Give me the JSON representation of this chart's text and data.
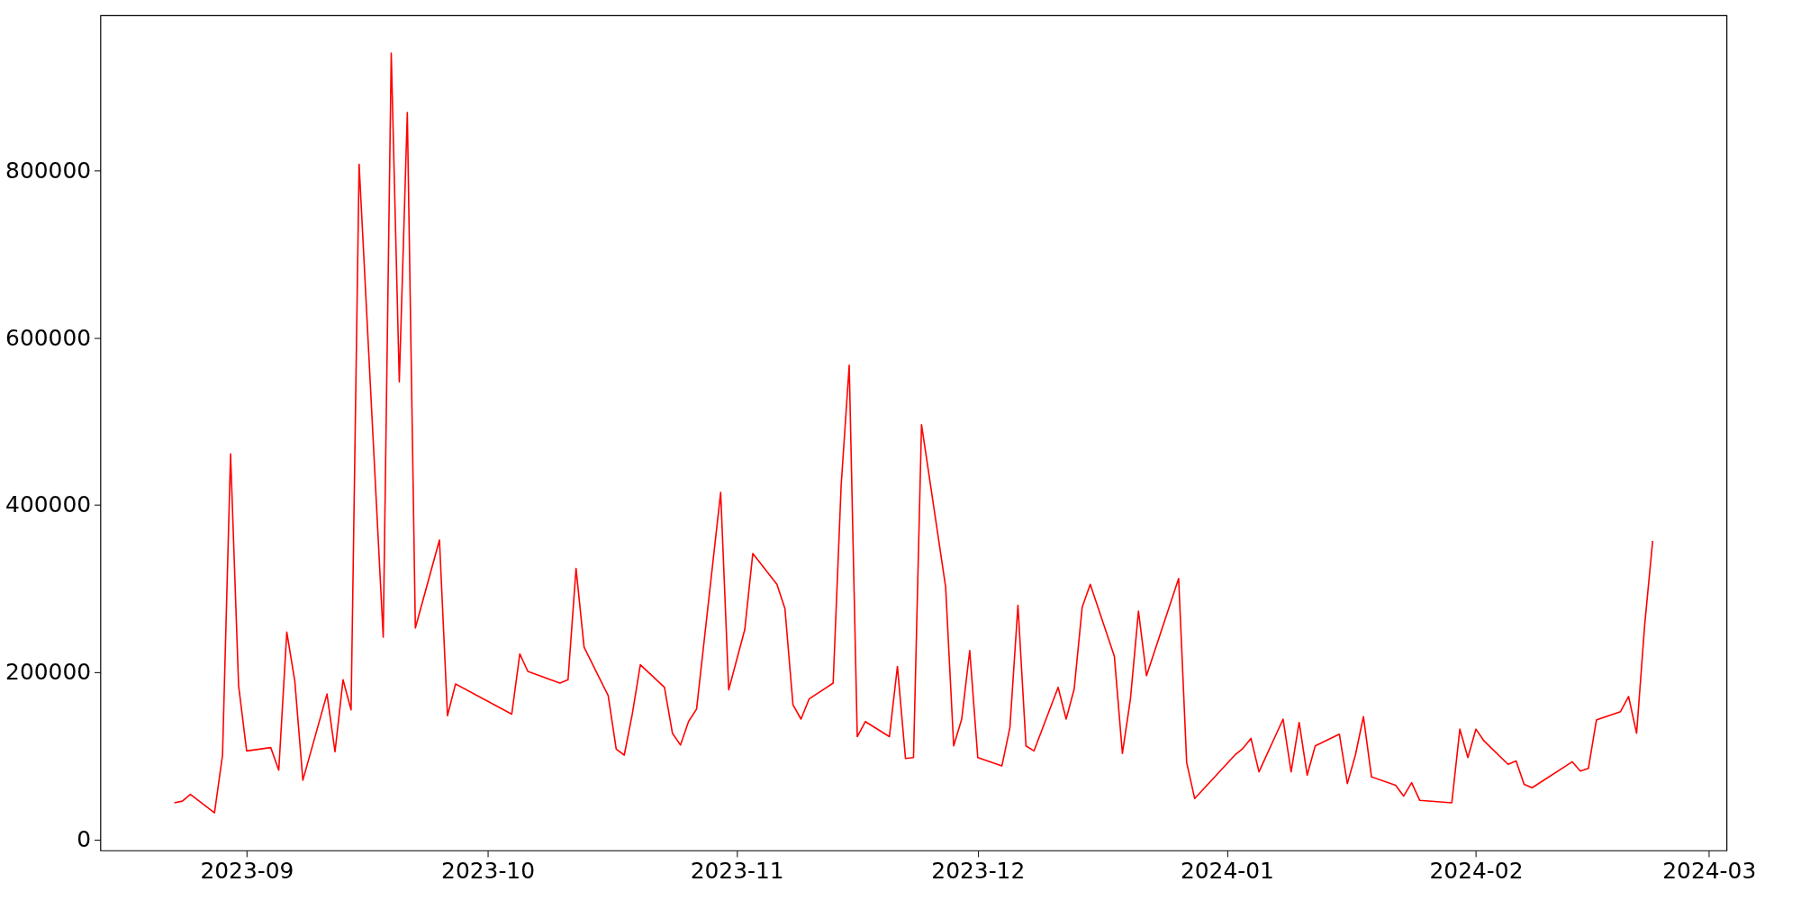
{
  "chart_data": {
    "type": "line",
    "x": [
      "2023-08-23",
      "2023-08-24",
      "2023-08-25",
      "2023-08-28",
      "2023-08-29",
      "2023-08-30",
      "2023-08-31",
      "2023-09-01",
      "2023-09-04",
      "2023-09-05",
      "2023-09-06",
      "2023-09-07",
      "2023-09-08",
      "2023-09-11",
      "2023-09-12",
      "2023-09-13",
      "2023-09-14",
      "2023-09-15",
      "2023-09-18",
      "2023-09-19",
      "2023-09-20",
      "2023-09-21",
      "2023-09-22",
      "2023-09-25",
      "2023-09-26",
      "2023-09-27",
      "2023-10-04",
      "2023-10-05",
      "2023-10-06",
      "2023-10-10",
      "2023-10-11",
      "2023-10-12",
      "2023-10-13",
      "2023-10-16",
      "2023-10-17",
      "2023-10-18",
      "2023-10-19",
      "2023-10-20",
      "2023-10-23",
      "2023-10-24",
      "2023-10-25",
      "2023-10-26",
      "2023-10-27",
      "2023-10-30",
      "2023-10-31",
      "2023-11-02",
      "2023-11-03",
      "2023-11-06",
      "2023-11-07",
      "2023-11-08",
      "2023-11-09",
      "2023-11-10",
      "2023-11-13",
      "2023-11-14",
      "2023-11-15",
      "2023-11-16",
      "2023-11-17",
      "2023-11-20",
      "2023-11-21",
      "2023-11-22",
      "2023-11-23",
      "2023-11-24",
      "2023-11-27",
      "2023-11-28",
      "2023-11-29",
      "2023-11-30",
      "2023-12-01",
      "2023-12-04",
      "2023-12-05",
      "2023-12-06",
      "2023-12-07",
      "2023-12-08",
      "2023-12-11",
      "2023-12-12",
      "2023-12-13",
      "2023-12-14",
      "2023-12-15",
      "2023-12-18",
      "2023-12-19",
      "2023-12-20",
      "2023-12-21",
      "2023-12-22",
      "2023-12-26",
      "2023-12-27",
      "2023-12-28",
      "2024-01-02",
      "2024-01-03",
      "2024-01-04",
      "2024-01-05",
      "2024-01-08",
      "2024-01-09",
      "2024-01-10",
      "2024-01-11",
      "2024-01-12",
      "2024-01-15",
      "2024-01-16",
      "2024-01-17",
      "2024-01-18",
      "2024-01-19",
      "2024-01-22",
      "2024-01-23",
      "2024-01-24",
      "2024-01-25",
      "2024-01-29",
      "2024-01-30",
      "2024-01-31",
      "2024-02-01",
      "2024-02-02",
      "2024-02-05",
      "2024-02-06",
      "2024-02-07",
      "2024-02-08",
      "2024-02-13",
      "2024-02-14",
      "2024-02-15",
      "2024-02-16",
      "2024-02-19",
      "2024-02-20",
      "2024-02-21",
      "2024-02-22",
      "2024-02-23"
    ],
    "series": [
      {
        "color": "#ff0000",
        "values": [
          44000,
          46000,
          54000,
          32000,
          101000,
          461000,
          184000,
          106000,
          110000,
          83000,
          248000,
          189000,
          71000,
          174000,
          105000,
          191000,
          155000,
          807000,
          242000,
          940000,
          547000,
          869000,
          253000,
          358000,
          148000,
          186000,
          150000,
          222000,
          201000,
          187000,
          191000,
          324000,
          230000,
          172000,
          108000,
          101000,
          150000,
          209000,
          182000,
          127000,
          113000,
          141000,
          156000,
          415000,
          179000,
          251000,
          342000,
          305000,
          276000,
          161000,
          144000,
          168000,
          187000,
          424000,
          567000,
          123000,
          141000,
          123000,
          207000,
          97000,
          98000,
          496000,
          302000,
          112000,
          144000,
          226000,
          98000,
          88000,
          134000,
          280000,
          112000,
          106000,
          182000,
          144000,
          180000,
          278000,
          305000,
          219000,
          103000,
          168000,
          273000,
          196000,
          312000,
          92000,
          49000,
          101000,
          109000,
          121000,
          81000,
          144000,
          81000,
          140000,
          77000,
          112000,
          126000,
          67000,
          101000,
          147000,
          75000,
          65000,
          52000,
          68000,
          47000,
          44000,
          132000,
          98000,
          132000,
          118000,
          90000,
          94000,
          66000,
          62000,
          93000,
          82000,
          85000,
          143000,
          153000,
          171000,
          127000,
          256000,
          357000
        ]
      }
    ],
    "xlim": [
      "2023-08-13T19:12",
      "2024-03-03T04:48"
    ],
    "xticks": [
      {
        "value": "2023-09-01",
        "label": "2023-09"
      },
      {
        "value": "2023-10-01",
        "label": "2023-10"
      },
      {
        "value": "2023-11-01",
        "label": "2023-11"
      },
      {
        "value": "2023-12-01",
        "label": "2023-12"
      },
      {
        "value": "2024-01-01",
        "label": "2024-01"
      },
      {
        "value": "2024-02-01",
        "label": "2024-02"
      },
      {
        "value": "2024-03-01",
        "label": "2024-03"
      }
    ],
    "ylim": [
      -13000,
      985000
    ],
    "yticks": [
      0,
      200000,
      400000,
      600000,
      800000
    ],
    "grid": false,
    "legend": false,
    "line_style": "solid",
    "marker": "none"
  }
}
